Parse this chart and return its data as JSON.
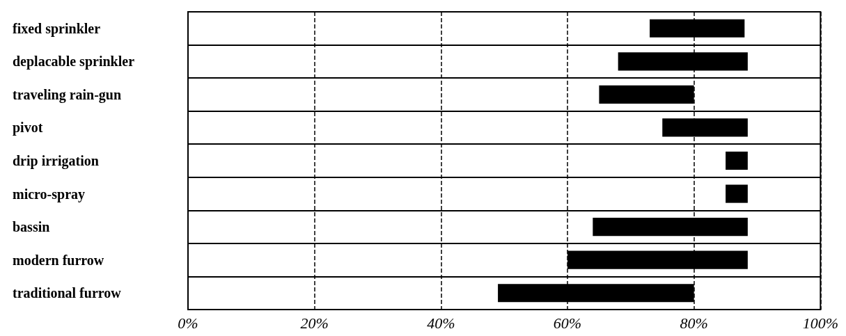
{
  "chart_data": {
    "type": "bar",
    "orientation": "horizontal",
    "categories": [
      "fixed sprinkler",
      "deplacable sprinkler",
      "traveling rain-gun",
      "pivot",
      "drip irrigation",
      "micro-spray",
      "bassin",
      "modern furrow",
      "traditional furrow"
    ],
    "base": [
      73,
      68,
      65,
      75,
      85,
      85,
      64,
      60,
      49
    ],
    "values": [
      15,
      20.5,
      15,
      13.5,
      3.5,
      3.5,
      24.5,
      28.5,
      31
    ],
    "color": "#000000",
    "xlim": [
      0,
      100
    ],
    "xticks": [
      {
        "value": 0,
        "label": "0%"
      },
      {
        "value": 20,
        "label": "20%"
      },
      {
        "value": 40,
        "label": "40%"
      },
      {
        "value": 60,
        "label": "60%"
      },
      {
        "value": 80,
        "label": "80%"
      },
      {
        "value": 100,
        "label": "100%"
      }
    ],
    "grid": true
  }
}
